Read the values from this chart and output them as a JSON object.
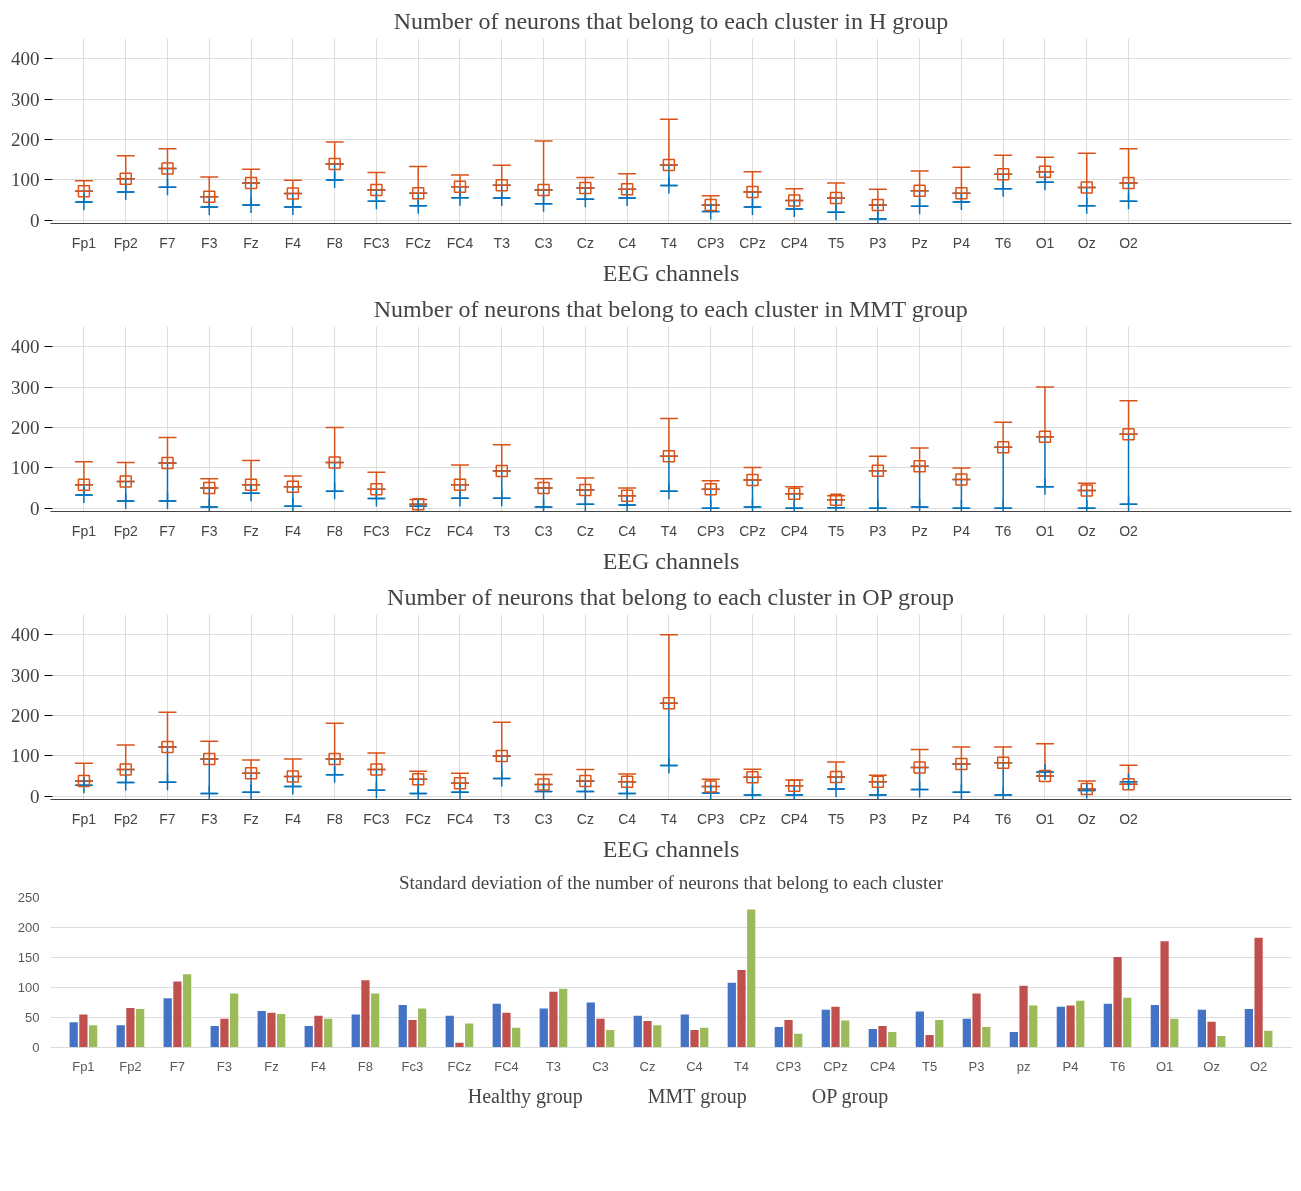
{
  "chart_data": [
    {
      "type": "scatter",
      "title": "Number of neurons that belong to each cluster in H group",
      "xlabel": "EEG channels",
      "categories": [
        "Fp1",
        "Fp2",
        "F7",
        "F3",
        "Fz",
        "F4",
        "F8",
        "FC3",
        "FCz",
        "FC4",
        "T3",
        "C3",
        "Cz",
        "C4",
        "T4",
        "CP3",
        "CPz",
        "CP4",
        "T5",
        "P3",
        "Pz",
        "P4",
        "T6",
        "O1",
        "Oz",
        "O2"
      ],
      "ylim": [
        -8,
        450
      ],
      "yticks": [
        0,
        100,
        200,
        300,
        400
      ],
      "grid": true,
      "series": [
        {
          "color": "#0072bd",
          "marker": "cross",
          "values": [
            45,
            70,
            82,
            33,
            38,
            33,
            100,
            47,
            36,
            56,
            55,
            41,
            52,
            55,
            86,
            22,
            33,
            28,
            20,
            3,
            35,
            45,
            78,
            94,
            36,
            47
          ],
          "errors": [
            [
              45,
              72
            ],
            [
              70,
              103
            ],
            [
              82,
              128
            ],
            [
              33,
              58
            ],
            [
              38,
              92
            ],
            [
              33,
              66
            ],
            [
              100,
              139
            ],
            [
              47,
              75
            ],
            [
              36,
              67
            ],
            [
              56,
              83
            ],
            [
              55,
              87
            ],
            [
              41,
              75
            ],
            [
              52,
              80
            ],
            [
              55,
              77
            ],
            [
              86,
              137
            ],
            [
              22,
              38
            ],
            [
              33,
              70
            ],
            [
              28,
              49
            ],
            [
              20,
              55
            ],
            [
              3,
              38
            ],
            [
              35,
              73
            ],
            [
              45,
              67
            ],
            [
              78,
              114
            ],
            [
              94,
              120
            ],
            [
              36,
              81
            ],
            [
              47,
              92
            ]
          ]
        },
        {
          "color": "#d95319",
          "marker": "square",
          "values": [
            72,
            103,
            128,
            58,
            92,
            66,
            139,
            75,
            67,
            83,
            87,
            75,
            80,
            77,
            137,
            38,
            70,
            49,
            55,
            38,
            73,
            67,
            114,
            120,
            81,
            92
          ],
          "errors": [
            [
              72,
              98
            ],
            [
              103,
              160
            ],
            [
              128,
              177
            ],
            [
              58,
              107
            ],
            [
              92,
              126
            ],
            [
              66,
              99
            ],
            [
              139,
              194
            ],
            [
              75,
              118
            ],
            [
              67,
              133
            ],
            [
              83,
              112
            ],
            [
              87,
              136
            ],
            [
              75,
              196
            ],
            [
              80,
              106
            ],
            [
              77,
              115
            ],
            [
              137,
              250
            ],
            [
              38,
              61
            ],
            [
              70,
              120
            ],
            [
              49,
              78
            ],
            [
              55,
              92
            ],
            [
              38,
              77
            ],
            [
              73,
              122
            ],
            [
              67,
              131
            ],
            [
              114,
              161
            ],
            [
              120,
              156
            ],
            [
              81,
              166
            ],
            [
              92,
              177
            ]
          ]
        }
      ]
    },
    {
      "type": "scatter",
      "title": "Number of neurons that belong to each cluster in MMT group",
      "xlabel": "EEG channels",
      "categories": [
        "Fp1",
        "Fp2",
        "F7",
        "F3",
        "Fz",
        "F4",
        "F8",
        "FC3",
        "FCz",
        "FC4",
        "T3",
        "C3",
        "Cz",
        "C4",
        "T4",
        "CP3",
        "CPz",
        "CP4",
        "T5",
        "P3",
        "Pz",
        "P4",
        "T6",
        "O1",
        "Oz",
        "O2"
      ],
      "ylim": [
        -8,
        450
      ],
      "yticks": [
        0,
        100,
        200,
        300,
        400
      ],
      "grid": true,
      "series": [
        {
          "color": "#0072bd",
          "marker": "cross",
          "values": [
            33,
            18,
            18,
            3,
            37,
            5,
            42,
            24,
            5,
            25,
            25,
            3,
            10,
            8,
            42,
            0,
            3,
            0,
            1,
            0,
            3,
            0,
            0,
            53,
            0,
            10
          ],
          "errors": [
            [
              33,
              58
            ],
            [
              18,
              66
            ],
            [
              18,
              112
            ],
            [
              3,
              50
            ],
            [
              37,
              58
            ],
            [
              5,
              53
            ],
            [
              42,
              113
            ],
            [
              24,
              47
            ],
            [
              5,
              10
            ],
            [
              25,
              58
            ],
            [
              25,
              92
            ],
            [
              3,
              50
            ],
            [
              10,
              45
            ],
            [
              8,
              31
            ],
            [
              42,
              129
            ],
            [
              0,
              47
            ],
            [
              3,
              70
            ],
            [
              0,
              36
            ],
            [
              1,
              21
            ],
            [
              0,
              93
            ],
            [
              3,
              104
            ],
            [
              0,
              71
            ],
            [
              0,
              151
            ],
            [
              53,
              177
            ],
            [
              0,
              44
            ],
            [
              10,
              183
            ]
          ]
        },
        {
          "color": "#d95319",
          "marker": "square",
          "values": [
            58,
            66,
            112,
            50,
            58,
            53,
            113,
            47,
            10,
            58,
            92,
            50,
            45,
            31,
            129,
            47,
            70,
            36,
            21,
            93,
            104,
            71,
            151,
            177,
            44,
            183
          ],
          "errors": [
            [
              58,
              115
            ],
            [
              66,
              113
            ],
            [
              112,
              175
            ],
            [
              50,
              73
            ],
            [
              58,
              118
            ],
            [
              53,
              80
            ],
            [
              113,
              200
            ],
            [
              47,
              89
            ],
            [
              10,
              22
            ],
            [
              58,
              107
            ],
            [
              92,
              157
            ],
            [
              50,
              73
            ],
            [
              45,
              75
            ],
            [
              31,
              50
            ],
            [
              129,
              222
            ],
            [
              47,
              68
            ],
            [
              70,
              101
            ],
            [
              36,
              53
            ],
            [
              21,
              31
            ],
            [
              93,
              129
            ],
            [
              104,
              149
            ],
            [
              71,
              100
            ],
            [
              151,
              213
            ],
            [
              177,
              300
            ],
            [
              44,
              62
            ],
            [
              183,
              266
            ]
          ]
        }
      ]
    },
    {
      "type": "scatter",
      "title": "Number of neurons that belong to each cluster in OP group",
      "xlabel": "EEG channels",
      "categories": [
        "Fp1",
        "Fp2",
        "F7",
        "F3",
        "Fz",
        "F4",
        "F8",
        "FC3",
        "FCz",
        "FC4",
        "T3",
        "C3",
        "Cz",
        "C4",
        "T4",
        "CP3",
        "CPz",
        "CP4",
        "T5",
        "P3",
        "Pz",
        "P4",
        "T6",
        "O1",
        "Oz",
        "O2"
      ],
      "ylim": [
        -8,
        450
      ],
      "yticks": [
        0,
        100,
        200,
        300,
        400
      ],
      "grid": true,
      "series": [
        {
          "color": "#0072bd",
          "marker": "cross",
          "values": [
            27,
            34,
            35,
            7,
            10,
            24,
            53,
            15,
            7,
            10,
            44,
            12,
            12,
            7,
            76,
            8,
            3,
            3,
            18,
            3,
            17,
            10,
            3,
            60,
            14,
            36
          ],
          "errors": [
            [
              27,
              38
            ],
            [
              34,
              66
            ],
            [
              35,
              122
            ],
            [
              7,
              92
            ],
            [
              10,
              57
            ],
            [
              24,
              49
            ],
            [
              53,
              92
            ],
            [
              15,
              66
            ],
            [
              7,
              42
            ],
            [
              10,
              32
            ],
            [
              44,
              100
            ],
            [
              12,
              29
            ],
            [
              12,
              38
            ],
            [
              7,
              36
            ],
            [
              76,
              230
            ],
            [
              8,
              24
            ],
            [
              3,
              47
            ],
            [
              3,
              26
            ],
            [
              18,
              48
            ],
            [
              3,
              36
            ],
            [
              17,
              71
            ],
            [
              10,
              80
            ],
            [
              3,
              83
            ],
            [
              50,
              60
            ],
            [
              14,
              18
            ],
            [
              30,
              36
            ]
          ]
        },
        {
          "color": "#d95319",
          "marker": "square",
          "values": [
            38,
            66,
            122,
            92,
            57,
            49,
            92,
            66,
            42,
            32,
            100,
            29,
            38,
            36,
            230,
            24,
            47,
            26,
            48,
            36,
            71,
            80,
            83,
            50,
            18,
            30
          ],
          "errors": [
            [
              38,
              82
            ],
            [
              66,
              127
            ],
            [
              122,
              208
            ],
            [
              92,
              136
            ],
            [
              57,
              90
            ],
            [
              49,
              92
            ],
            [
              92,
              181
            ],
            [
              66,
              107
            ],
            [
              42,
              62
            ],
            [
              32,
              57
            ],
            [
              100,
              183
            ],
            [
              29,
              54
            ],
            [
              38,
              66
            ],
            [
              36,
              55
            ],
            [
              230,
              400
            ],
            [
              24,
              42
            ],
            [
              47,
              67
            ],
            [
              26,
              40
            ],
            [
              48,
              85
            ],
            [
              36,
              52
            ],
            [
              71,
              116
            ],
            [
              80,
              122
            ],
            [
              83,
              122
            ],
            [
              50,
              130
            ],
            [
              18,
              38
            ],
            [
              30,
              77
            ]
          ]
        }
      ]
    },
    {
      "type": "bar",
      "title": "Standard deviation of the number of neurons that belong to each cluster",
      "categories": [
        "Fp1",
        "Fp2",
        "F7",
        "F3",
        "Fz",
        "F4",
        "F8",
        "Fc3",
        "FCz",
        "FC4",
        "T3",
        "C3",
        "Cz",
        "C4",
        "T4",
        "CP3",
        "CPz",
        "CP4",
        "T5",
        "P3",
        "pz",
        "P4",
        "T6",
        "O1",
        "Oz",
        "O2"
      ],
      "ylim": [
        0,
        250
      ],
      "yticks": [
        0,
        50,
        100,
        150,
        200,
        250
      ],
      "grid": "y",
      "legend": "bottom",
      "series": [
        {
          "name": "Healthy group",
          "color": "#4472c4",
          "values": [
            42,
            37,
            82,
            36,
            61,
            36,
            55,
            71,
            53,
            73,
            65,
            75,
            53,
            55,
            108,
            34,
            63,
            31,
            60,
            48,
            26,
            68,
            73,
            71,
            63,
            64
          ]
        },
        {
          "name": "MMT group",
          "color": "#c0504d",
          "values": [
            55,
            66,
            110,
            48,
            58,
            53,
            112,
            46,
            8,
            58,
            93,
            48,
            44,
            29,
            129,
            46,
            68,
            36,
            21,
            90,
            103,
            70,
            151,
            177,
            43,
            183
          ]
        },
        {
          "name": "OP group",
          "color": "#9bbb59",
          "values": [
            37,
            64,
            122,
            90,
            56,
            48,
            90,
            65,
            40,
            33,
            98,
            29,
            37,
            33,
            230,
            23,
            45,
            26,
            46,
            34,
            70,
            78,
            83,
            48,
            19,
            28
          ]
        }
      ]
    }
  ]
}
